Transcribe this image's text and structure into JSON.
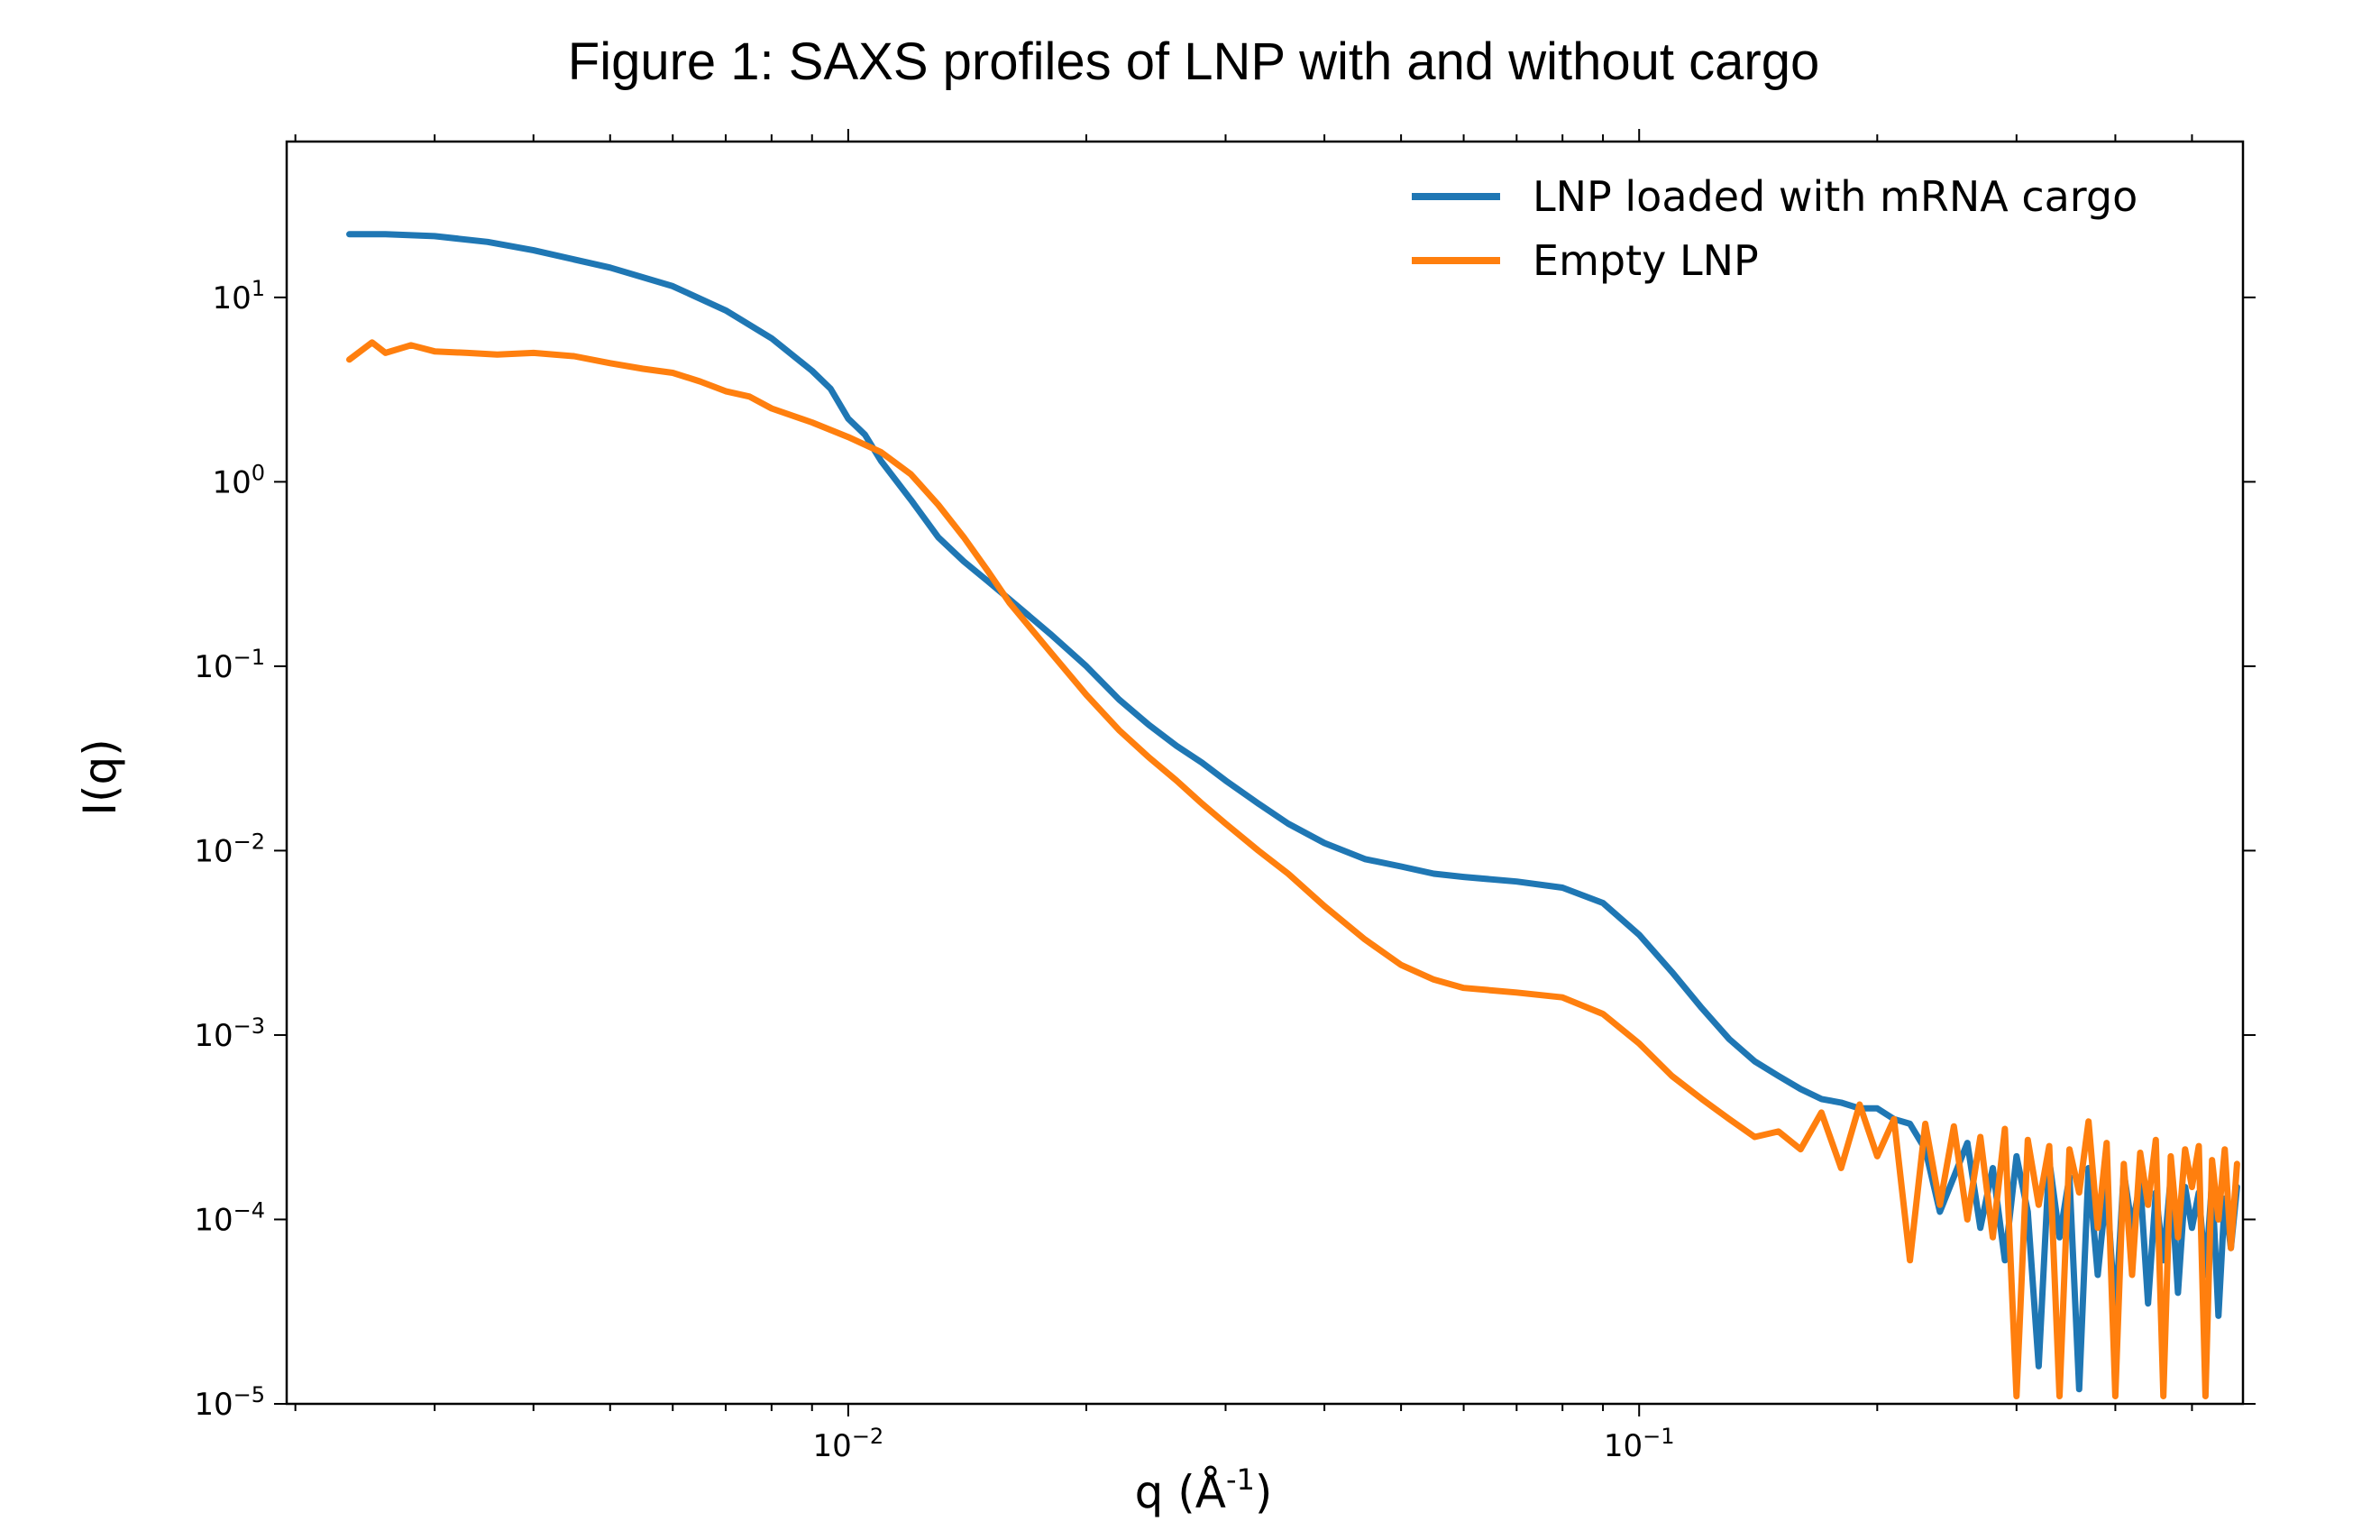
{
  "figure": {
    "title": "Figure 1: SAXS profiles of LNP with and without cargo"
  },
  "chart_data": {
    "type": "line",
    "title": "Figure 1: SAXS profiles of LNP with and without cargo",
    "xlabel_main": "q (Å",
    "xlabel_sup": "-1",
    "xlabel_close": ")",
    "ylabel": "I(q)",
    "xscale": "log",
    "yscale": "log",
    "xlim": [
      0.00195,
      0.58
    ],
    "ylim": [
      1e-05,
      70
    ],
    "grid": false,
    "legend_position": "top-right",
    "x_ticks": [
      {
        "value": 0.01,
        "base": "10",
        "exp": "−2"
      },
      {
        "value": 0.1,
        "base": "10",
        "exp": "−1"
      }
    ],
    "y_ticks": [
      {
        "value": 10,
        "base": "10",
        "exp": "1"
      },
      {
        "value": 1,
        "base": "10",
        "exp": "0"
      },
      {
        "value": 0.1,
        "base": "10",
        "exp": "−1"
      },
      {
        "value": 0.01,
        "base": "10",
        "exp": "−2"
      },
      {
        "value": 0.001,
        "base": "10",
        "exp": "−3"
      },
      {
        "value": 0.0001,
        "base": "10",
        "exp": "−4"
      },
      {
        "value": 1e-05,
        "base": "10",
        "exp": "−5"
      }
    ],
    "series": [
      {
        "name": "LNP loaded with mRNA cargo",
        "color": "#1f77b4",
        "x": [
          0.00234,
          0.0026,
          0.003,
          0.0035,
          0.004,
          0.005,
          0.006,
          0.007,
          0.008,
          0.009,
          0.0095,
          0.01,
          0.0105,
          0.011,
          0.012,
          0.013,
          0.014,
          0.015,
          0.016,
          0.018,
          0.02,
          0.022,
          0.024,
          0.026,
          0.028,
          0.03,
          0.033,
          0.036,
          0.04,
          0.045,
          0.05,
          0.055,
          0.06,
          0.07,
          0.08,
          0.09,
          0.1,
          0.11,
          0.12,
          0.13,
          0.14,
          0.15,
          0.16,
          0.17,
          0.18,
          0.19,
          0.2,
          0.21,
          0.22,
          0.23,
          0.24,
          0.25,
          0.26,
          0.27,
          0.28,
          0.29,
          0.3,
          0.31,
          0.32,
          0.33,
          0.34,
          0.35,
          0.36,
          0.37,
          0.38,
          0.39,
          0.4,
          0.41,
          0.42,
          0.43,
          0.44,
          0.45,
          0.46,
          0.47,
          0.48,
          0.49,
          0.5,
          0.51,
          0.52,
          0.53,
          0.54,
          0.55,
          0.56,
          0.57
        ],
        "y": [
          22,
          22,
          21.5,
          20,
          18,
          14.5,
          11.5,
          8.5,
          6,
          4,
          3.2,
          2.2,
          1.8,
          1.3,
          0.8,
          0.5,
          0.37,
          0.29,
          0.23,
          0.15,
          0.1,
          0.066,
          0.048,
          0.037,
          0.03,
          0.024,
          0.018,
          0.014,
          0.011,
          0.009,
          0.0082,
          0.0075,
          0.0072,
          0.0068,
          0.0063,
          0.0052,
          0.0035,
          0.0022,
          0.0014,
          0.00095,
          0.00072,
          0.0006,
          0.00051,
          0.00045,
          0.00043,
          0.0004,
          0.0004,
          0.00035,
          0.00033,
          0.00024,
          0.00011,
          0.00017,
          0.00026,
          9e-05,
          0.00019,
          6e-05,
          0.00022,
          0.00011,
          1.6e-05,
          0.00021,
          8e-05,
          0.00017,
          1.2e-05,
          0.00019,
          5e-05,
          0.00015,
          3e-05,
          0.00018,
          9e-05,
          0.00016,
          3.5e-05,
          0.00014,
          6e-05,
          0.00017,
          4e-05,
          0.00015,
          9e-05,
          0.00014,
          5e-05,
          0.00016,
          3e-05,
          0.00013,
          7e-05,
          0.00015
        ]
      },
      {
        "name": "Empty LNP",
        "color": "#ff7f0e",
        "x": [
          0.00234,
          0.0025,
          0.0026,
          0.0028,
          0.003,
          0.0033,
          0.0036,
          0.004,
          0.0045,
          0.005,
          0.0055,
          0.006,
          0.0065,
          0.007,
          0.0075,
          0.008,
          0.009,
          0.01,
          0.011,
          0.012,
          0.013,
          0.014,
          0.015,
          0.016,
          0.018,
          0.02,
          0.022,
          0.024,
          0.026,
          0.028,
          0.03,
          0.033,
          0.036,
          0.04,
          0.045,
          0.05,
          0.055,
          0.06,
          0.07,
          0.08,
          0.09,
          0.1,
          0.11,
          0.12,
          0.13,
          0.14,
          0.15,
          0.16,
          0.17,
          0.18,
          0.19,
          0.2,
          0.21,
          0.22,
          0.23,
          0.24,
          0.25,
          0.26,
          0.27,
          0.28,
          0.29,
          0.3,
          0.31,
          0.32,
          0.33,
          0.34,
          0.35,
          0.36,
          0.37,
          0.38,
          0.39,
          0.4,
          0.41,
          0.42,
          0.43,
          0.44,
          0.45,
          0.46,
          0.47,
          0.48,
          0.49,
          0.5,
          0.51,
          0.52,
          0.53,
          0.54,
          0.55,
          0.56,
          0.57
        ],
        "y": [
          4.6,
          5.7,
          5.0,
          5.5,
          5.1,
          5.0,
          4.9,
          5.0,
          4.8,
          4.4,
          4.1,
          3.9,
          3.5,
          3.1,
          2.9,
          2.5,
          2.1,
          1.75,
          1.45,
          1.1,
          0.75,
          0.5,
          0.33,
          0.22,
          0.12,
          0.07,
          0.045,
          0.032,
          0.024,
          0.018,
          0.014,
          0.01,
          0.0075,
          0.005,
          0.0033,
          0.0024,
          0.002,
          0.0018,
          0.0017,
          0.0016,
          0.0013,
          0.0009,
          0.0006,
          0.00045,
          0.00035,
          0.00028,
          0.0003,
          0.00024,
          0.00038,
          0.00019,
          0.00042,
          0.00022,
          0.00035,
          6e-05,
          0.00033,
          0.00012,
          0.00032,
          0.0001,
          0.00028,
          8e-05,
          0.00031,
          1.1e-05,
          0.00027,
          0.00012,
          0.00025,
          1.1e-05,
          0.00024,
          0.00014,
          0.00034,
          9e-05,
          0.00026,
          1.1e-05,
          0.0002,
          5e-05,
          0.00023,
          0.00012,
          0.00027,
          1.1e-05,
          0.00022,
          8e-05,
          0.00024,
          0.00015,
          0.00025,
          1.1e-05,
          0.00021,
          0.0001,
          0.00024,
          7e-05,
          0.0002
        ]
      }
    ]
  }
}
